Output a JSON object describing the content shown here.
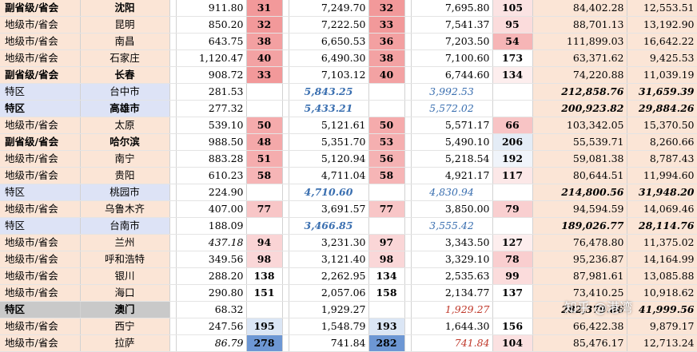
{
  "rows": [
    {
      "type": "副省级/省会",
      "city": "沈阳",
      "v1": "911.80",
      "r1": "31",
      "v2": "7,249.70",
      "r2": "32",
      "v3": "7,695.80",
      "r3": "105",
      "v4": "84,402.28",
      "v5": "12,553.51",
      "cat": "sub",
      "bold": true,
      "r1bg": "#f2999a",
      "r2bg": "#f2999a",
      "r3bg": "#fbe3e3"
    },
    {
      "type": "地级市/省会",
      "city": "昆明",
      "v1": "850.20",
      "r1": "32",
      "v2": "7,222.50",
      "r2": "33",
      "v3": "7,541.37",
      "r3": "95",
      "v4": "88,701.13",
      "v5": "13,192.90",
      "cat": "pref",
      "bold": false,
      "r1bg": "#f2999a",
      "r2bg": "#f2999a",
      "r3bg": "#fbdcdc"
    },
    {
      "type": "地级市/省会",
      "city": "南昌",
      "v1": "643.75",
      "r1": "38",
      "v2": "6,650.53",
      "r2": "36",
      "v3": "7,203.50",
      "r3": "54",
      "v4": "111,899.03",
      "v5": "16,642.22",
      "cat": "pref",
      "bold": false,
      "r1bg": "#f3a0a1",
      "r2bg": "#f3a0a1",
      "r3bg": "#f6b5b6"
    },
    {
      "type": "地级市/省会",
      "city": "石家庄",
      "v1": "1,120.47",
      "r1": "40",
      "v2": "6,490.30",
      "r2": "38",
      "v3": "7,100.60",
      "r3": "173",
      "v4": "63,371.62",
      "v5": "9,425.53",
      "cat": "pref",
      "bold": false,
      "r1bg": "#f3a2a3",
      "r2bg": "#f3a2a3",
      "r3bg": "#ffffff"
    },
    {
      "type": "副省级/省会",
      "city": "长春",
      "v1": "908.72",
      "r1": "33",
      "v2": "7,103.12",
      "r2": "40",
      "v3": "6,744.60",
      "r3": "134",
      "v4": "74,220.88",
      "v5": "11,039.19",
      "cat": "sub",
      "bold": true,
      "r1bg": "#f2999a",
      "r2bg": "#f3a2a3",
      "r3bg": "#fdeeee"
    },
    {
      "type": "特区",
      "city": "台中市",
      "v1": "281.53",
      "r1": "",
      "v2": "5,843.25",
      "r2": "",
      "v3": "3,992.53",
      "r3": "",
      "v4": "212,858.76",
      "v5": "31,659.39",
      "cat": "tw",
      "bold": false,
      "r1bg": "#ffffff",
      "r2bg": "#ffffff",
      "r3bg": "#ffffff"
    },
    {
      "type": "特区",
      "city": "高雄市",
      "v1": "277.32",
      "r1": "",
      "v2": "5,433.21",
      "r2": "",
      "v3": "5,572.02",
      "r3": "",
      "v4": "200,923.82",
      "v5": "29,884.26",
      "cat": "tw",
      "bold": true,
      "r1bg": "#ffffff",
      "r2bg": "#ffffff",
      "r3bg": "#ffffff"
    },
    {
      "type": "地级市/省会",
      "city": "太原",
      "v1": "539.10",
      "r1": "50",
      "v2": "5,121.61",
      "r2": "50",
      "v3": "5,571.17",
      "r3": "66",
      "v4": "103,342.05",
      "v5": "15,370.50",
      "cat": "pref",
      "bold": false,
      "r1bg": "#f5abac",
      "r2bg": "#f5abac",
      "r3bg": "#f8c4c5"
    },
    {
      "type": "副省级/省会",
      "city": "哈尔滨",
      "v1": "988.50",
      "r1": "48",
      "v2": "5,351.70",
      "r2": "53",
      "v3": "5,490.10",
      "r3": "206",
      "v4": "55,539.71",
      "v5": "8,260.66",
      "cat": "sub",
      "bold": true,
      "r1bg": "#f4a8a9",
      "r2bg": "#f5afb0",
      "r3bg": "#e4ecf6"
    },
    {
      "type": "地级市/省会",
      "city": "南宁",
      "v1": "883.28",
      "r1": "51",
      "v2": "5,120.94",
      "r2": "56",
      "v3": "5,218.54",
      "r3": "192",
      "v4": "59,081.38",
      "v5": "8,787.43",
      "cat": "pref",
      "bold": false,
      "r1bg": "#f5adae",
      "r2bg": "#f5b2b3",
      "r3bg": "#f0f4fa"
    },
    {
      "type": "地级市/省会",
      "city": "贵阳",
      "v1": "610.23",
      "r1": "58",
      "v2": "4,711.04",
      "r2": "58",
      "v3": "4,921.17",
      "r3": "117",
      "v4": "80,644.51",
      "v5": "11,994.60",
      "cat": "pref",
      "bold": false,
      "r1bg": "#f6b5b6",
      "r2bg": "#f6b5b6",
      "r3bg": "#fce8e8"
    },
    {
      "type": "特区",
      "city": "桃园市",
      "v1": "224.90",
      "r1": "",
      "v2": "4,710.60",
      "r2": "",
      "v3": "4,830.94",
      "r3": "",
      "v4": "214,800.56",
      "v5": "31,948.20",
      "cat": "tw",
      "bold": false,
      "r1bg": "#ffffff",
      "r2bg": "#ffffff",
      "r3bg": "#ffffff"
    },
    {
      "type": "地级市/省会",
      "city": "乌鲁木齐",
      "v1": "407.00",
      "r1": "77",
      "v2": "3,691.57",
      "r2": "77",
      "v3": "3,850.00",
      "r3": "79",
      "v4": "94,594.59",
      "v5": "14,069.46",
      "cat": "pref",
      "bold": false,
      "r1bg": "#f8c6c7",
      "r2bg": "#f8c6c7",
      "r3bg": "#f9cfd0"
    },
    {
      "type": "特区",
      "city": "台南市",
      "v1": "188.09",
      "r1": "",
      "v2": "3,466.85",
      "r2": "",
      "v3": "3,555.42",
      "r3": "",
      "v4": "189,026.77",
      "v5": "28,114.76",
      "cat": "tw",
      "bold": false,
      "r1bg": "#ffffff",
      "r2bg": "#ffffff",
      "r3bg": "#ffffff"
    },
    {
      "type": "地级市/省会",
      "city": "兰州",
      "v1": "437.18",
      "r1": "94",
      "v2": "3,231.30",
      "r2": "97",
      "v3": "3,343.50",
      "r3": "127",
      "v4": "76,478.80",
      "v5": "11,375.02",
      "cat": "pref",
      "bold": false,
      "r1bg": "#fad4d5",
      "r2bg": "#fad6d7",
      "r3bg": "#fdeeee"
    },
    {
      "type": "地级市/省会",
      "city": "呼和浩特",
      "v1": "349.56",
      "r1": "98",
      "v2": "3,121.40",
      "r2": "98",
      "v3": "3,329.10",
      "r3": "78",
      "v4": "95,236.87",
      "v5": "14,164.99",
      "cat": "pref",
      "bold": false,
      "r1bg": "#fad7d8",
      "r2bg": "#fad7d8",
      "r3bg": "#f9cecf"
    },
    {
      "type": "地级市/省会",
      "city": "银川",
      "v1": "288.20",
      "r1": "138",
      "v2": "2,262.95",
      "r2": "134",
      "v3": "2,535.63",
      "r3": "99",
      "v4": "87,981.61",
      "v5": "13,085.88",
      "cat": "pref",
      "bold": false,
      "r1bg": "#ffffff",
      "r2bg": "#ffffff",
      "r3bg": "#fbdcdc"
    },
    {
      "type": "地级市/省会",
      "city": "海口",
      "v1": "290.80",
      "r1": "151",
      "v2": "2,057.06",
      "r2": "158",
      "v3": "2,134.77",
      "r3": "137",
      "v4": "73,410.25",
      "v5": "10,918.62",
      "cat": "pref",
      "bold": false,
      "r1bg": "#ffffff",
      "r2bg": "#ffffff",
      "r3bg": "#ffffff"
    },
    {
      "type": "特区",
      "city": "澳门",
      "v1": "68.32",
      "r1": "",
      "v2": "1,929.27",
      "r2": "",
      "v3": "1,929.27",
      "r3": "",
      "v4": "282,379.86",
      "v5": "41,999.56",
      "cat": "mo",
      "bold": true,
      "r1bg": "#ffffff",
      "r2bg": "#ffffff",
      "r3bg": "#ffffff"
    },
    {
      "type": "地级市/省会",
      "city": "西宁",
      "v1": "247.56",
      "r1": "195",
      "v2": "1,548.79",
      "r2": "193",
      "v3": "1,644.30",
      "r3": "156",
      "v4": "66,422.38",
      "v5": "9,879.17",
      "cat": "pref",
      "bold": false,
      "r1bg": "#dbe6f5",
      "r2bg": "#dbe6f5",
      "r3bg": "#ffffff"
    },
    {
      "type": "地级市/省会",
      "city": "拉萨",
      "v1": "86.79",
      "r1": "278",
      "v2": "741.84",
      "r2": "282",
      "v3": "741.84",
      "r3": "104",
      "v4": "85,476.17",
      "v5": "12,713.24",
      "cat": "pref",
      "bold": false,
      "r1bg": "#6d97d4",
      "r2bg": "#6d97d4",
      "r3bg": "#fbe1e1"
    }
  ],
  "styles": {
    "tw_v2_class": "blue",
    "tw_v3_class": "blue-i",
    "tw_v45_class": "bi",
    "mo_v3_class": "red-i",
    "lhasa_v3_class": "red-i",
    "italic_v1": [
      "兰州",
      "拉萨"
    ]
  },
  "colors": {
    "sub_left": "#fbe5d6",
    "pref_left": "#fbe5d6",
    "tw_left": "#dde3f6",
    "mo_left": "#c9c9c9",
    "v45_bg": "#fbe5d6"
  },
  "watermark": "知乎 @港湾"
}
